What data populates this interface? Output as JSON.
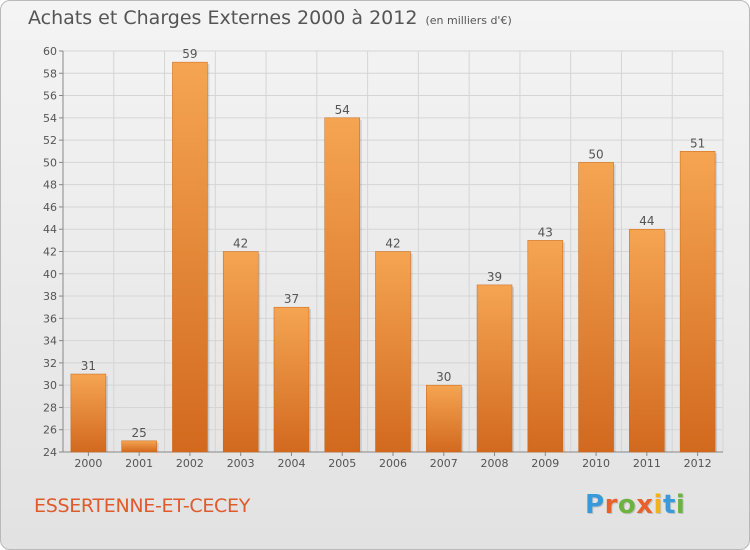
{
  "title": "Achats et Charges Externes 2000 à 2012",
  "subtitle": "(en milliers d'€)",
  "commune": "ESSERTENNE-ET-CECEY",
  "logo": {
    "letters": [
      "P",
      "r",
      "o",
      "x",
      "i",
      "t",
      "i"
    ],
    "colors": [
      "#3a9ad9",
      "#e8612c",
      "#6cb33f",
      "#e8612c",
      "#f2b21b",
      "#3a9ad9",
      "#6cb33f"
    ]
  },
  "colors": {
    "bar_top": "#f5a552",
    "bar_bottom": "#d2691e",
    "grid": "#d5d5d5",
    "text": "#555555",
    "commune": "#e05a2b"
  },
  "chart_data": {
    "type": "bar",
    "title": "Achats et Charges Externes 2000 à 2012",
    "subtitle": "(en milliers d'€)",
    "categories": [
      "2000",
      "2001",
      "2002",
      "2003",
      "2004",
      "2005",
      "2006",
      "2007",
      "2008",
      "2009",
      "2010",
      "2011",
      "2012"
    ],
    "values": [
      31,
      25,
      59,
      42,
      37,
      54,
      42,
      30,
      39,
      43,
      50,
      44,
      51
    ],
    "ylim": [
      24,
      60
    ],
    "yticks": [
      24,
      26,
      28,
      30,
      32,
      34,
      36,
      38,
      40,
      42,
      44,
      46,
      48,
      50,
      52,
      54,
      56,
      58,
      60
    ],
    "grid": true,
    "xlabel": "",
    "ylabel": ""
  }
}
